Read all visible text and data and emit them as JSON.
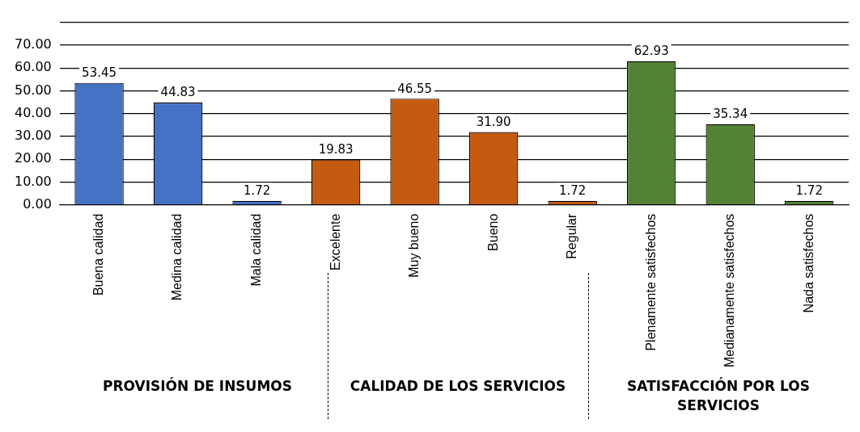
{
  "chart_data": {
    "type": "bar",
    "categories": [
      "Buena calidad",
      "Medina calidad",
      "Mala calidad",
      "Excelente",
      "Muy bueno",
      "Bueno",
      "Regular",
      "Plenamente satisfechos",
      "Medianamente satisfechos",
      "Nada satisfechos"
    ],
    "values": [
      53.45,
      44.83,
      1.72,
      19.83,
      46.55,
      31.9,
      1.72,
      62.93,
      35.34,
      1.72
    ],
    "colors": [
      "#4472c4",
      "#4472c4",
      "#4472c4",
      "#c55a11",
      "#c55a11",
      "#c55a11",
      "#c55a11",
      "#548235",
      "#548235",
      "#548235"
    ],
    "value_labels": [
      "53.45",
      "44.83",
      "1.72",
      "19.83",
      "46.55",
      "31.90",
      "1.72",
      "62.93",
      "35.34",
      "1.72"
    ],
    "ylim": [
      0,
      80
    ],
    "yticks": [
      {
        "value": 0,
        "label": "0.00"
      },
      {
        "value": 10,
        "label": "10.00"
      },
      {
        "value": 20,
        "label": "20.00"
      },
      {
        "value": 30,
        "label": "30.00"
      },
      {
        "value": 40,
        "label": "40.00"
      },
      {
        "value": 50,
        "label": "50.00"
      },
      {
        "value": 60,
        "label": "60.00"
      },
      {
        "value": 70,
        "label": "70.00"
      },
      {
        "value": 80,
        "label": null
      }
    ],
    "grid": "y",
    "legend": false,
    "annotations": [
      "PROVISIÓN DE INSUMOS",
      "CALIDAD DE LOS SERVICIOS",
      "SATISFACCIÓN POR LOS SERVICIOS"
    ]
  }
}
